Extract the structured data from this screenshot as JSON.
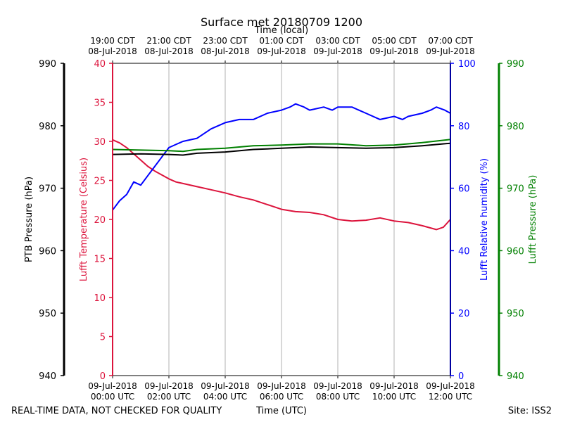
{
  "chart_data": {
    "type": "line",
    "title": "Surface met 20180709 1200",
    "top_axis_label": "Time (local)",
    "bottom_axis_label": "Time (UTC)",
    "footer_left": "REAL-TIME DATA, NOT CHECKED FOR QUALITY",
    "footer_right": "Site: ISS2",
    "x_range_hours": [
      0,
      12
    ],
    "top_ticks": [
      {
        "h": 0,
        "line1": "19:00 CDT",
        "line2": "08-Jul-2018"
      },
      {
        "h": 2,
        "line1": "21:00 CDT",
        "line2": "08-Jul-2018"
      },
      {
        "h": 4,
        "line1": "23:00 CDT",
        "line2": "08-Jul-2018"
      },
      {
        "h": 6,
        "line1": "01:00 CDT",
        "line2": "09-Jul-2018"
      },
      {
        "h": 8,
        "line1": "03:00 CDT",
        "line2": "09-Jul-2018"
      },
      {
        "h": 10,
        "line1": "05:00 CDT",
        "line2": "09-Jul-2018"
      },
      {
        "h": 12,
        "line1": "07:00 CDT",
        "line2": "09-Jul-2018"
      }
    ],
    "bottom_ticks": [
      {
        "h": 0,
        "line1": "09-Jul-2018",
        "line2": "00:00 UTC"
      },
      {
        "h": 2,
        "line1": "09-Jul-2018",
        "line2": "02:00 UTC"
      },
      {
        "h": 4,
        "line1": "09-Jul-2018",
        "line2": "04:00 UTC"
      },
      {
        "h": 6,
        "line1": "09-Jul-2018",
        "line2": "06:00 UTC"
      },
      {
        "h": 8,
        "line1": "09-Jul-2018",
        "line2": "08:00 UTC"
      },
      {
        "h": 10,
        "line1": "09-Jul-2018",
        "line2": "10:00 UTC"
      },
      {
        "h": 12,
        "line1": "09-Jul-2018",
        "line2": "12:00 UTC"
      }
    ],
    "axes": {
      "ptb": {
        "label": "PTB Pressure (hPa)",
        "range": [
          940,
          990
        ],
        "ticks": [
          940,
          950,
          960,
          970,
          980,
          990
        ],
        "color": "#000000"
      },
      "temp": {
        "label": "Lufft Temperature (Celsius)",
        "range": [
          0,
          40
        ],
        "ticks": [
          0,
          5,
          10,
          15,
          20,
          25,
          30,
          35,
          40
        ],
        "color": "#dc143c"
      },
      "rh": {
        "label": "Lufft Relative humidity (%)",
        "range": [
          0,
          100
        ],
        "ticks": [
          0,
          20,
          40,
          60,
          80,
          100
        ],
        "color": "#0000ff"
      },
      "lp": {
        "label": "Lufft Pressure (hPa)",
        "range": [
          940,
          990
        ],
        "ticks": [
          940,
          950,
          960,
          970,
          980,
          990
        ],
        "color": "#008000"
      }
    },
    "series": [
      {
        "name": "Lufft Temperature",
        "axis": "temp",
        "color": "#dc143c",
        "x": [
          0,
          0.25,
          0.5,
          0.75,
          1.0,
          1.25,
          1.5,
          1.75,
          2.0,
          2.25,
          2.5,
          3.0,
          3.5,
          4.0,
          4.5,
          5.0,
          5.5,
          6.0,
          6.5,
          7.0,
          7.5,
          8.0,
          8.5,
          9.0,
          9.5,
          10.0,
          10.5,
          11.0,
          11.5,
          11.75,
          12.0
        ],
        "values": [
          30.2,
          29.8,
          29.2,
          28.4,
          27.6,
          26.8,
          26.2,
          25.7,
          25.2,
          24.8,
          24.6,
          24.2,
          23.8,
          23.4,
          22.9,
          22.5,
          21.9,
          21.3,
          21.0,
          20.9,
          20.6,
          20.0,
          19.8,
          19.9,
          20.2,
          19.8,
          19.6,
          19.2,
          18.7,
          19.0,
          20.0
        ]
      },
      {
        "name": "Lufft Relative humidity",
        "axis": "rh",
        "color": "#0000ff",
        "x": [
          0,
          0.25,
          0.5,
          0.75,
          1.0,
          1.25,
          1.5,
          1.75,
          2.0,
          2.25,
          2.5,
          3.0,
          3.5,
          4.0,
          4.5,
          5.0,
          5.5,
          6.0,
          6.3,
          6.5,
          6.8,
          7.0,
          7.5,
          7.8,
          8.0,
          8.5,
          9.0,
          9.5,
          10.0,
          10.3,
          10.5,
          11.0,
          11.3,
          11.5,
          11.8,
          12.0
        ],
        "values": [
          53,
          56,
          58,
          62,
          61,
          64,
          67,
          70,
          73,
          74,
          75,
          76,
          79,
          81,
          82,
          82,
          84,
          85,
          86,
          87,
          86,
          85,
          86,
          85,
          86,
          86,
          84,
          82,
          83,
          82,
          83,
          84,
          85,
          86,
          85,
          84
        ]
      },
      {
        "name": "Lufft Pressure",
        "axis": "lp",
        "color": "#008000",
        "x": [
          0,
          1,
          2,
          2.5,
          3,
          4,
          5,
          6,
          7,
          8,
          9,
          10,
          11,
          12
        ],
        "values": [
          976.2,
          976.1,
          976.0,
          975.9,
          976.2,
          976.4,
          976.8,
          976.9,
          977.1,
          977.1,
          976.8,
          976.9,
          977.3,
          977.8
        ]
      },
      {
        "name": "PTB Pressure",
        "axis": "ptb",
        "color": "#000000",
        "x": [
          0,
          1,
          2,
          2.5,
          3,
          4,
          5,
          6,
          7,
          8,
          9,
          10,
          11,
          12
        ],
        "values": [
          975.4,
          975.5,
          975.4,
          975.3,
          975.6,
          975.8,
          976.2,
          976.4,
          976.6,
          976.5,
          976.4,
          976.5,
          976.8,
          977.2
        ]
      }
    ]
  }
}
